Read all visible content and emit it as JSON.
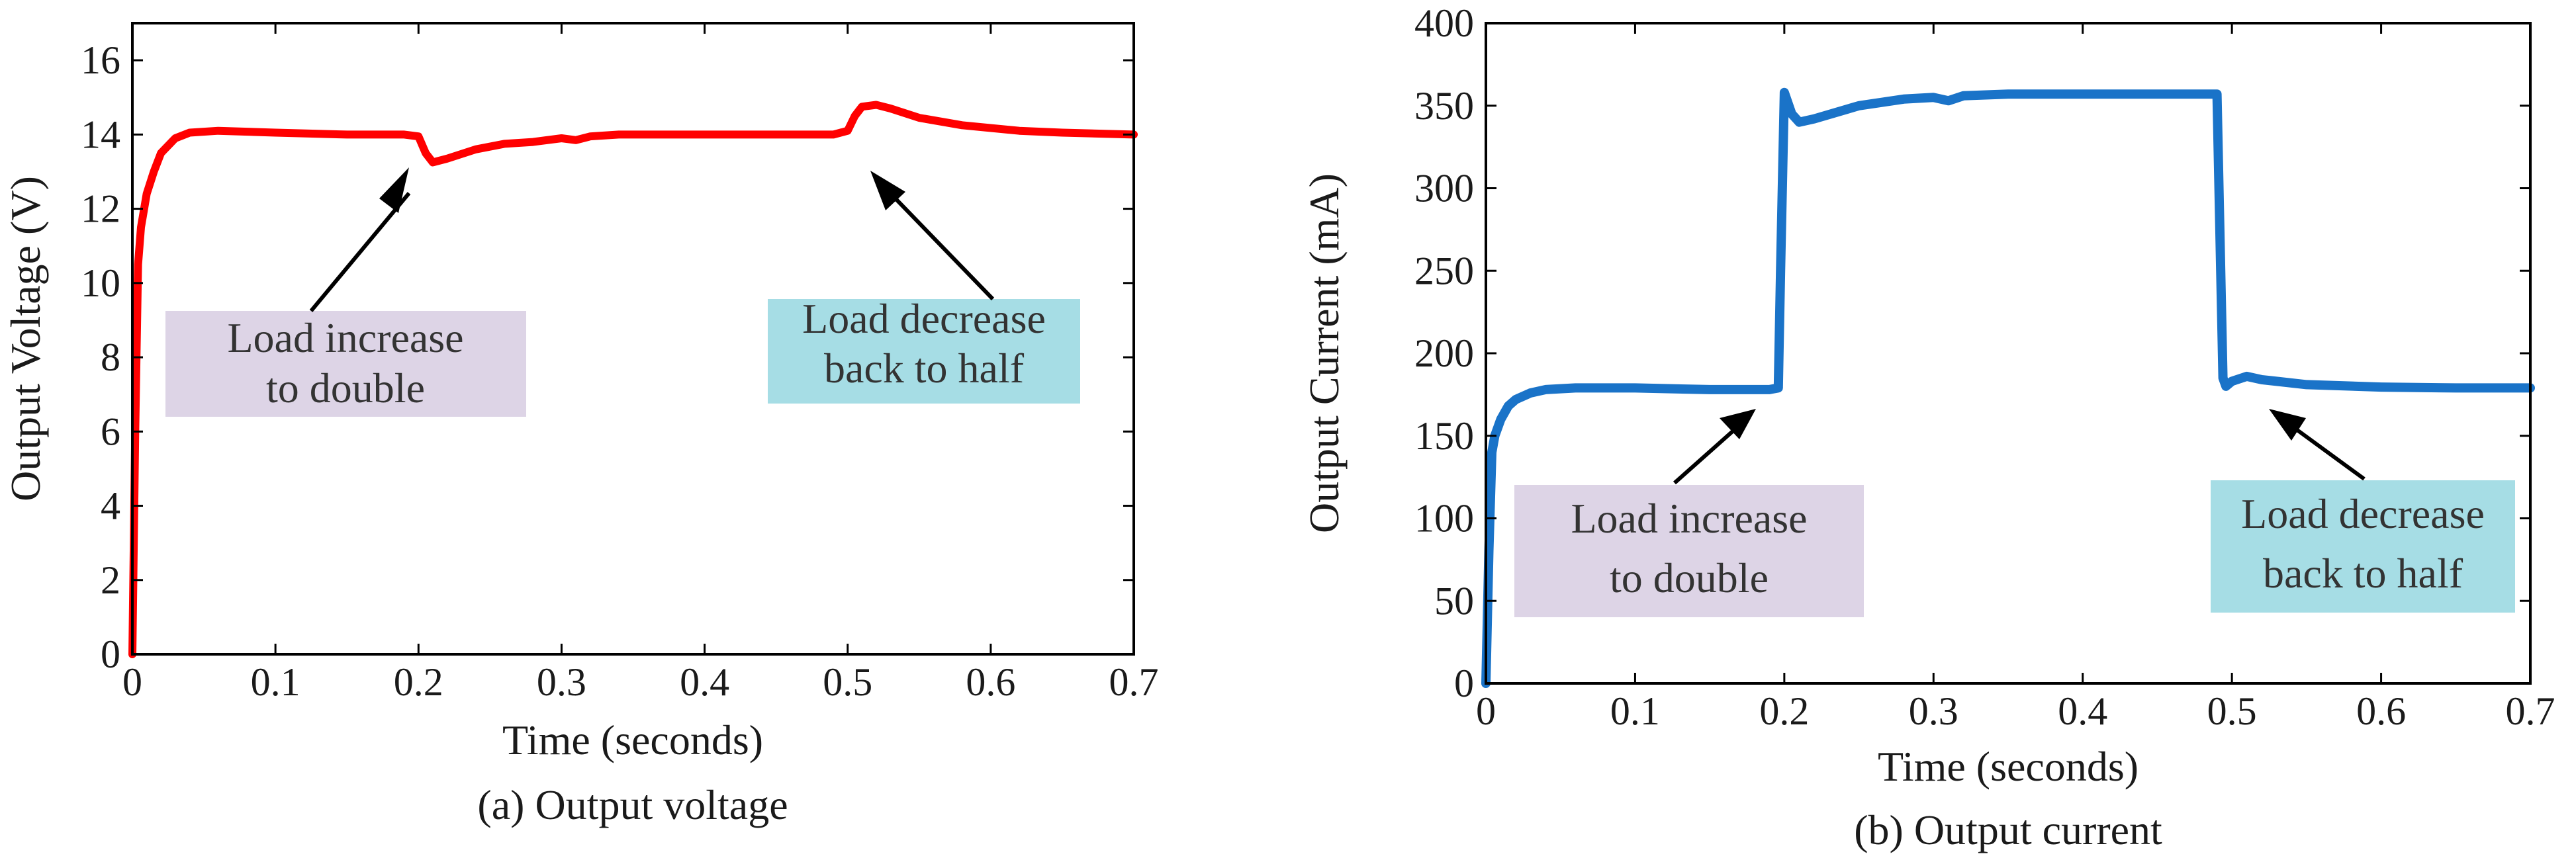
{
  "chart_data": [
    {
      "id": "a",
      "type": "line",
      "caption": "(a) Output voltage",
      "xlabel": "Time (seconds)",
      "ylabel": "Output Voltage (V)",
      "xlim": [
        0,
        0.7
      ],
      "ylim": [
        0,
        17
      ],
      "xticks": [
        0,
        0.1,
        0.2,
        0.3,
        0.4,
        0.5,
        0.6,
        0.7
      ],
      "xtick_labels": [
        "0",
        "0.1",
        "0.2",
        "0.3",
        "0.4",
        "0.5",
        "0.6",
        "0.7"
      ],
      "yticks": [
        0,
        2,
        4,
        6,
        8,
        10,
        12,
        14,
        16
      ],
      "ytick_labels": [
        "0",
        "2",
        "4",
        "6",
        "8",
        "10",
        "12",
        "14",
        "16"
      ],
      "grid": false,
      "series": [
        {
          "name": "Output voltage",
          "color": "#ff0000",
          "x": [
            0,
            0.002,
            0.004,
            0.006,
            0.01,
            0.015,
            0.02,
            0.03,
            0.04,
            0.06,
            0.1,
            0.15,
            0.19,
            0.2,
            0.205,
            0.21,
            0.22,
            0.24,
            0.26,
            0.28,
            0.3,
            0.31,
            0.32,
            0.34,
            0.4,
            0.45,
            0.49,
            0.5,
            0.505,
            0.51,
            0.52,
            0.53,
            0.55,
            0.58,
            0.62,
            0.65,
            0.7
          ],
          "y": [
            0,
            6,
            10.5,
            11.5,
            12.4,
            13.0,
            13.5,
            13.9,
            14.05,
            14.1,
            14.05,
            14.0,
            14.0,
            13.95,
            13.5,
            13.25,
            13.35,
            13.6,
            13.75,
            13.8,
            13.9,
            13.85,
            13.95,
            14.0,
            14.0,
            14.0,
            14.0,
            14.1,
            14.5,
            14.75,
            14.8,
            14.7,
            14.45,
            14.25,
            14.1,
            14.05,
            14.0
          ]
        }
      ],
      "annotations": [
        {
          "text": [
            "Load increase",
            "to double"
          ],
          "fill": "#ddd4e6",
          "x": 0.205,
          "y": 13.3
        },
        {
          "text": [
            "Load decrease",
            "back to half"
          ],
          "fill": "#a6dde5",
          "x": 0.505,
          "y": 14.0
        }
      ]
    },
    {
      "id": "b",
      "type": "line",
      "caption": "(b) Output current",
      "xlabel": "Time (seconds)",
      "ylabel": "Output Current (mA)",
      "xlim": [
        0,
        0.7
      ],
      "ylim": [
        0,
        400
      ],
      "xticks": [
        0,
        0.1,
        0.2,
        0.3,
        0.4,
        0.5,
        0.6,
        0.7
      ],
      "xtick_labels": [
        "0",
        "0.1",
        "0.2",
        "0.3",
        "0.4",
        "0.5",
        "0.6",
        "0.7"
      ],
      "yticks": [
        0,
        50,
        100,
        150,
        200,
        250,
        300,
        350,
        400
      ],
      "ytick_labels": [
        "0",
        "50",
        "100",
        "150",
        "200",
        "250",
        "300",
        "350",
        "400"
      ],
      "grid": false,
      "series": [
        {
          "name": "Output current",
          "color": "#1a73c8",
          "x": [
            0,
            0.002,
            0.004,
            0.006,
            0.01,
            0.015,
            0.02,
            0.03,
            0.04,
            0.06,
            0.1,
            0.15,
            0.19,
            0.196,
            0.1975,
            0.2,
            0.205,
            0.21,
            0.22,
            0.25,
            0.28,
            0.3,
            0.31,
            0.32,
            0.35,
            0.4,
            0.45,
            0.49,
            0.4925,
            0.494,
            0.496,
            0.5,
            0.51,
            0.52,
            0.55,
            0.6,
            0.65,
            0.7
          ],
          "y": [
            0,
            80,
            140,
            150,
            160,
            168,
            172,
            176,
            178,
            179,
            179,
            178,
            178,
            179,
            250,
            358,
            345,
            340,
            342,
            350,
            354,
            355,
            353,
            356,
            357,
            357,
            357,
            357,
            250,
            185,
            180,
            183,
            186,
            184,
            181,
            179.5,
            179,
            179
          ]
        }
      ],
      "annotations": [
        {
          "text": [
            "Load increase",
            "to double"
          ],
          "fill": "#ddd4e6",
          "x": 0.195,
          "y": 178
        },
        {
          "text": [
            "Load decrease",
            "back to half"
          ],
          "fill": "#a6dde5",
          "x": 0.505,
          "y": 183
        }
      ]
    }
  ]
}
